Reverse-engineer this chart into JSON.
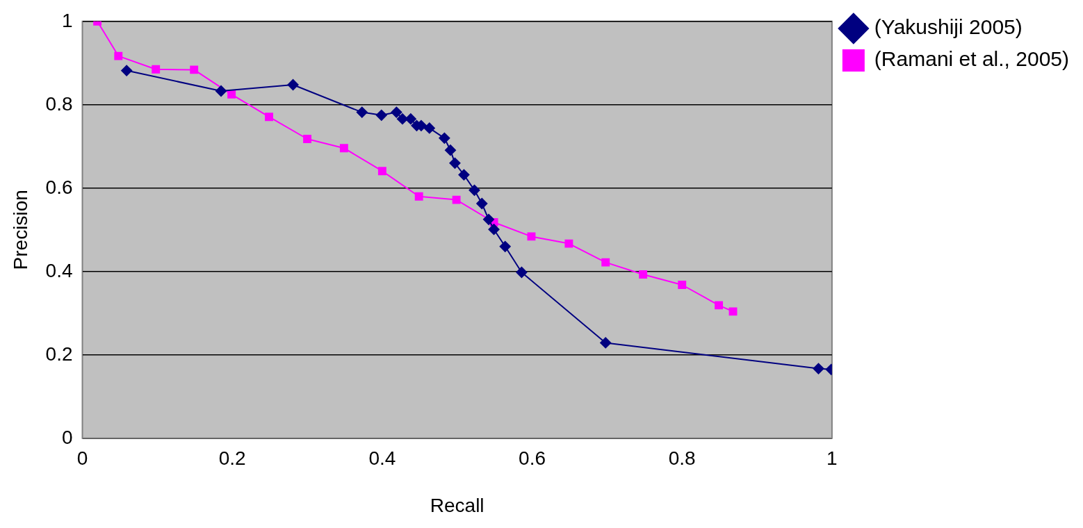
{
  "chart_data": {
    "type": "line",
    "xlabel": "Recall",
    "ylabel": "Precision",
    "xlim": [
      0,
      1
    ],
    "xticks": [
      0,
      0.2,
      0.4,
      0.6,
      0.8,
      1
    ],
    "ylim": [
      0,
      1
    ],
    "yticks": [
      0,
      0.2,
      0.4,
      0.6,
      0.8,
      1
    ],
    "grid": "y",
    "legend": "top right",
    "line_style": "solid",
    "series": [
      {
        "name": "(Yakushiji 2005)",
        "color": "#000080",
        "marker": "diamond",
        "x": [
          0.059,
          0.185,
          0.281,
          0.373,
          0.399,
          0.419,
          0.427,
          0.438,
          0.446,
          0.452,
          0.463,
          0.483,
          0.491,
          0.497,
          0.509,
          0.523,
          0.533,
          0.542,
          0.549,
          0.564,
          0.586,
          0.698,
          0.982,
          0.999
        ],
        "values": [
          0.882,
          0.833,
          0.848,
          0.782,
          0.775,
          0.782,
          0.766,
          0.766,
          0.75,
          0.75,
          0.744,
          0.72,
          0.691,
          0.66,
          0.632,
          0.595,
          0.563,
          0.525,
          0.501,
          0.46,
          0.398,
          0.229,
          0.167,
          0.165
        ]
      },
      {
        "name": "(Ramani et al., 2005)",
        "color": "#ff00ff",
        "marker": "square",
        "x": [
          0.02,
          0.048,
          0.098,
          0.149,
          0.199,
          0.249,
          0.3,
          0.349,
          0.4,
          0.449,
          0.499,
          0.549,
          0.599,
          0.649,
          0.698,
          0.748,
          0.8,
          0.849,
          0.868
        ],
        "values": [
          1.0,
          0.917,
          0.885,
          0.884,
          0.825,
          0.771,
          0.718,
          0.696,
          0.641,
          0.58,
          0.572,
          0.518,
          0.484,
          0.467,
          0.422,
          0.393,
          0.368,
          0.319,
          0.304
        ]
      }
    ]
  }
}
